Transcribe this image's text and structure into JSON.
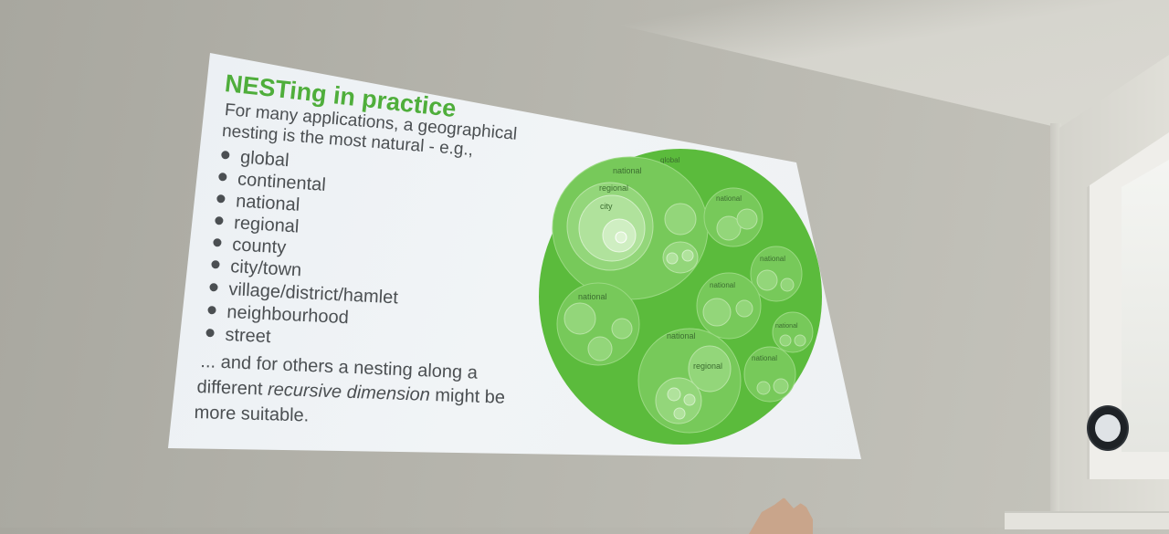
{
  "slide": {
    "title": "NESTing in practice",
    "intro_line1": "For many applications, a geographical",
    "intro_line2": "nesting is the most natural - e.g.,",
    "bullets": [
      "global",
      "continental",
      "national",
      "regional",
      "county",
      "city/town",
      "village/district/hamlet",
      "neighbourhood",
      "street"
    ],
    "outro_line1": "... and for others a nesting along a",
    "outro_line2_a": "different ",
    "outro_line2_em": "recursive dimension",
    "outro_line2_b": " might be",
    "outro_line3": "more suitable."
  },
  "diagram": {
    "global_label": "global",
    "national_label": "national",
    "regional_label": "regional",
    "city_label": "city",
    "colors": {
      "outer": "#5bbb3c",
      "level2": "#77c95a",
      "level3": "#93d67a",
      "level4": "#b0e29c",
      "level5": "#cfeec2"
    }
  }
}
